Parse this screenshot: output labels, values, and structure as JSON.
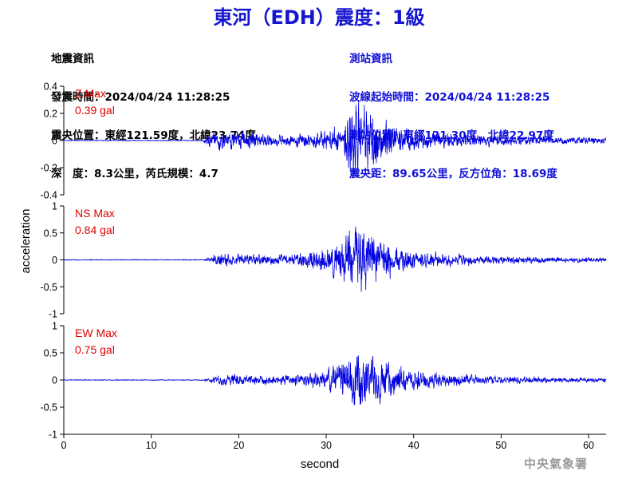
{
  "page": {
    "title": "東河（EDH）震度：1級",
    "watermark": "中央氣象署"
  },
  "quake_info": {
    "heading": "地震資訊",
    "time_label": "發震時間：",
    "time": "2024/04/24 11:28:25",
    "epicenter_label": "震央位置：",
    "epicenter": "東經121.59度，北緯23.74度",
    "depth_label": "深　度：",
    "depth": "8.3公里",
    "magnitude_label": "芮氏規模：",
    "magnitude": "4.7"
  },
  "station_info": {
    "heading": "測站資訊",
    "wave_start_label": "波線起始時間：",
    "wave_start": "2024/04/24 11:28:25",
    "location_label": "測站位置：",
    "location": "東經121.30度，北緯22.97度",
    "distance_label": "震央距：",
    "distance": "89.65公里",
    "azimuth_label": "反方位角：",
    "azimuth": "18.69度"
  },
  "chart_data": {
    "type": "line",
    "xlabel": "second",
    "ylabel": "acceleration",
    "xlim": [
      0,
      62
    ],
    "xticks": [
      0,
      10,
      20,
      30,
      40,
      50,
      60
    ],
    "line_color": "#0000e0",
    "max_label_color": "#e00000",
    "panels": [
      {
        "name": "Z",
        "max_label": "Z Max",
        "max_value": "0.39 gal",
        "ylim": [
          -0.4,
          0.4
        ],
        "yticks": [
          -0.4,
          -0.2,
          0,
          0.2,
          0.4
        ],
        "yticklabels": [
          "-0.4",
          "-0.2",
          "0",
          "0.2",
          "0.4"
        ],
        "envelope_t": [
          0,
          15.9,
          16.5,
          18,
          20,
          22,
          25,
          28,
          30,
          31.5,
          32.5,
          33.3,
          34.1,
          35,
          36,
          37,
          38,
          40,
          42,
          45,
          48,
          52,
          56,
          62
        ],
        "envelope_a": [
          0.004,
          0.004,
          0.07,
          0.09,
          0.09,
          0.06,
          0.05,
          0.06,
          0.09,
          0.14,
          0.24,
          0.39,
          0.34,
          0.28,
          0.2,
          0.16,
          0.12,
          0.09,
          0.08,
          0.06,
          0.05,
          0.04,
          0.035,
          0.03
        ]
      },
      {
        "name": "NS",
        "max_label": "NS Max",
        "max_value": "0.84 gal",
        "ylim": [
          -1,
          1
        ],
        "yticks": [
          -1,
          -0.5,
          0,
          0.5,
          1
        ],
        "yticklabels": [
          "-1",
          "-0.5",
          "0",
          "0.5",
          "1"
        ],
        "envelope_t": [
          0,
          15.9,
          16.5,
          18,
          20,
          22,
          25,
          28,
          30,
          31.5,
          32.5,
          33.5,
          34.3,
          35.5,
          37,
          38.5,
          40,
          42,
          45,
          48,
          52,
          56,
          62
        ],
        "envelope_a": [
          0.01,
          0.01,
          0.06,
          0.15,
          0.14,
          0.11,
          0.12,
          0.2,
          0.3,
          0.45,
          0.6,
          0.84,
          0.72,
          0.55,
          0.45,
          0.3,
          0.22,
          0.18,
          0.14,
          0.1,
          0.08,
          0.06,
          0.05
        ]
      },
      {
        "name": "EW",
        "max_label": "EW Max",
        "max_value": "0.75 gal",
        "ylim": [
          -1,
          1
        ],
        "yticks": [
          -1,
          -0.5,
          0,
          0.5,
          1
        ],
        "yticklabels": [
          "-1",
          "-0.5",
          "0",
          "0.5",
          "1"
        ],
        "envelope_t": [
          0,
          15.9,
          16.5,
          18,
          20,
          22,
          25,
          28,
          30,
          31.5,
          32.5,
          33.4,
          34.3,
          35.5,
          37,
          38.5,
          40,
          42,
          45,
          48,
          52,
          56,
          62
        ],
        "envelope_a": [
          0.01,
          0.01,
          0.05,
          0.12,
          0.14,
          0.1,
          0.1,
          0.16,
          0.25,
          0.38,
          0.55,
          0.75,
          0.6,
          0.5,
          0.42,
          0.3,
          0.22,
          0.18,
          0.14,
          0.1,
          0.08,
          0.06,
          0.05
        ]
      }
    ]
  }
}
